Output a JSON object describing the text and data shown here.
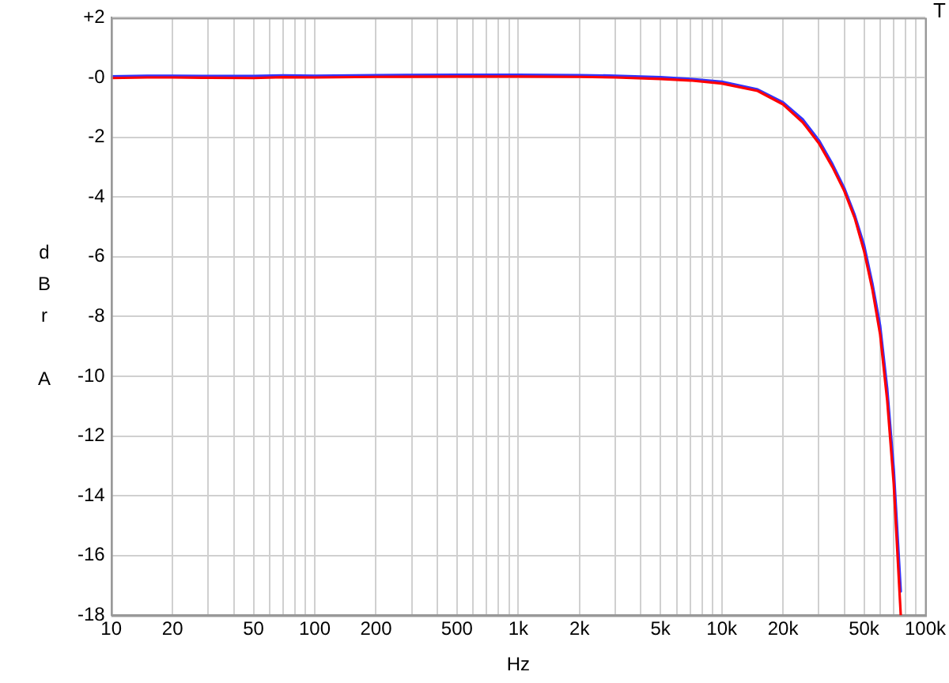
{
  "chart_data": {
    "type": "line",
    "xlabel": "Hz",
    "ylabel": "dBr A",
    "annotations": [
      "T"
    ],
    "x": [
      10,
      15,
      20,
      30,
      50,
      70,
      100,
      200,
      500,
      1000,
      2000,
      3000,
      5000,
      7000,
      10000,
      15000,
      20000,
      25000,
      30000,
      35000,
      40000,
      45000,
      50000,
      55000,
      60000,
      65000,
      70000,
      75800
    ],
    "series": [
      {
        "color": "#3333ff",
        "values": [
          0.04,
          0.06,
          0.06,
          0.05,
          0.05,
          0.07,
          0.06,
          0.08,
          0.09,
          0.09,
          0.08,
          0.06,
          0.01,
          -0.05,
          -0.14,
          -0.4,
          -0.83,
          -1.4,
          -2.1,
          -2.9,
          -3.7,
          -4.6,
          -5.6,
          -6.9,
          -8.3,
          -10.4,
          -13.1,
          -17.2
        ]
      },
      {
        "color": "#ff0000",
        "values": [
          -0.02,
          0,
          0,
          -0.01,
          -0.02,
          0.01,
          0,
          0.02,
          0.03,
          0.03,
          0.02,
          0,
          -0.05,
          -0.1,
          -0.2,
          -0.45,
          -0.9,
          -1.5,
          -2.2,
          -3.0,
          -3.8,
          -4.7,
          -5.8,
          -7.1,
          -8.6,
          -10.8,
          -13.6,
          -18
        ]
      }
    ],
    "log": "x",
    "xlim": [
      10,
      100000
    ],
    "xticks": [
      10,
      20,
      {
        "value": 30,
        "label": null
      },
      {
        "value": 40,
        "label": null
      },
      50,
      {
        "value": 60,
        "label": null
      },
      {
        "value": 70,
        "label": null
      },
      {
        "value": 80,
        "label": null
      },
      {
        "value": 90,
        "label": null
      },
      100,
      200,
      {
        "value": 300,
        "label": null
      },
      {
        "value": 400,
        "label": null
      },
      500,
      {
        "value": 600,
        "label": null
      },
      {
        "value": 700,
        "label": null
      },
      {
        "value": 800,
        "label": null
      },
      {
        "value": 900,
        "label": null
      },
      {
        "value": 1000,
        "label": "1k"
      },
      {
        "value": 2000,
        "label": "2k"
      },
      {
        "value": 3000,
        "label": null
      },
      {
        "value": 4000,
        "label": null
      },
      {
        "value": 5000,
        "label": "5k"
      },
      {
        "value": 6000,
        "label": null
      },
      {
        "value": 7000,
        "label": null
      },
      {
        "value": 8000,
        "label": null
      },
      {
        "value": 9000,
        "label": null
      },
      {
        "value": 10000,
        "label": "10k"
      },
      {
        "value": 20000,
        "label": "20k"
      },
      {
        "value": 30000,
        "label": null
      },
      {
        "value": 40000,
        "label": null
      },
      {
        "value": 50000,
        "label": "50k"
      },
      {
        "value": 60000,
        "label": null
      },
      {
        "value": 70000,
        "label": null
      },
      {
        "value": 80000,
        "label": null
      },
      {
        "value": 90000,
        "label": null
      },
      {
        "value": 100000,
        "label": "100k"
      }
    ],
    "ylim": [
      -18,
      2
    ],
    "yticks": [
      {
        "value": 2,
        "label": "+2"
      },
      {
        "value": 0,
        "label": "-0"
      },
      -2,
      -4,
      -6,
      -8,
      -10,
      -12,
      -14,
      -16,
      -18
    ],
    "grid": true,
    "legend": false,
    "marker": "none",
    "line_style": "solid"
  }
}
